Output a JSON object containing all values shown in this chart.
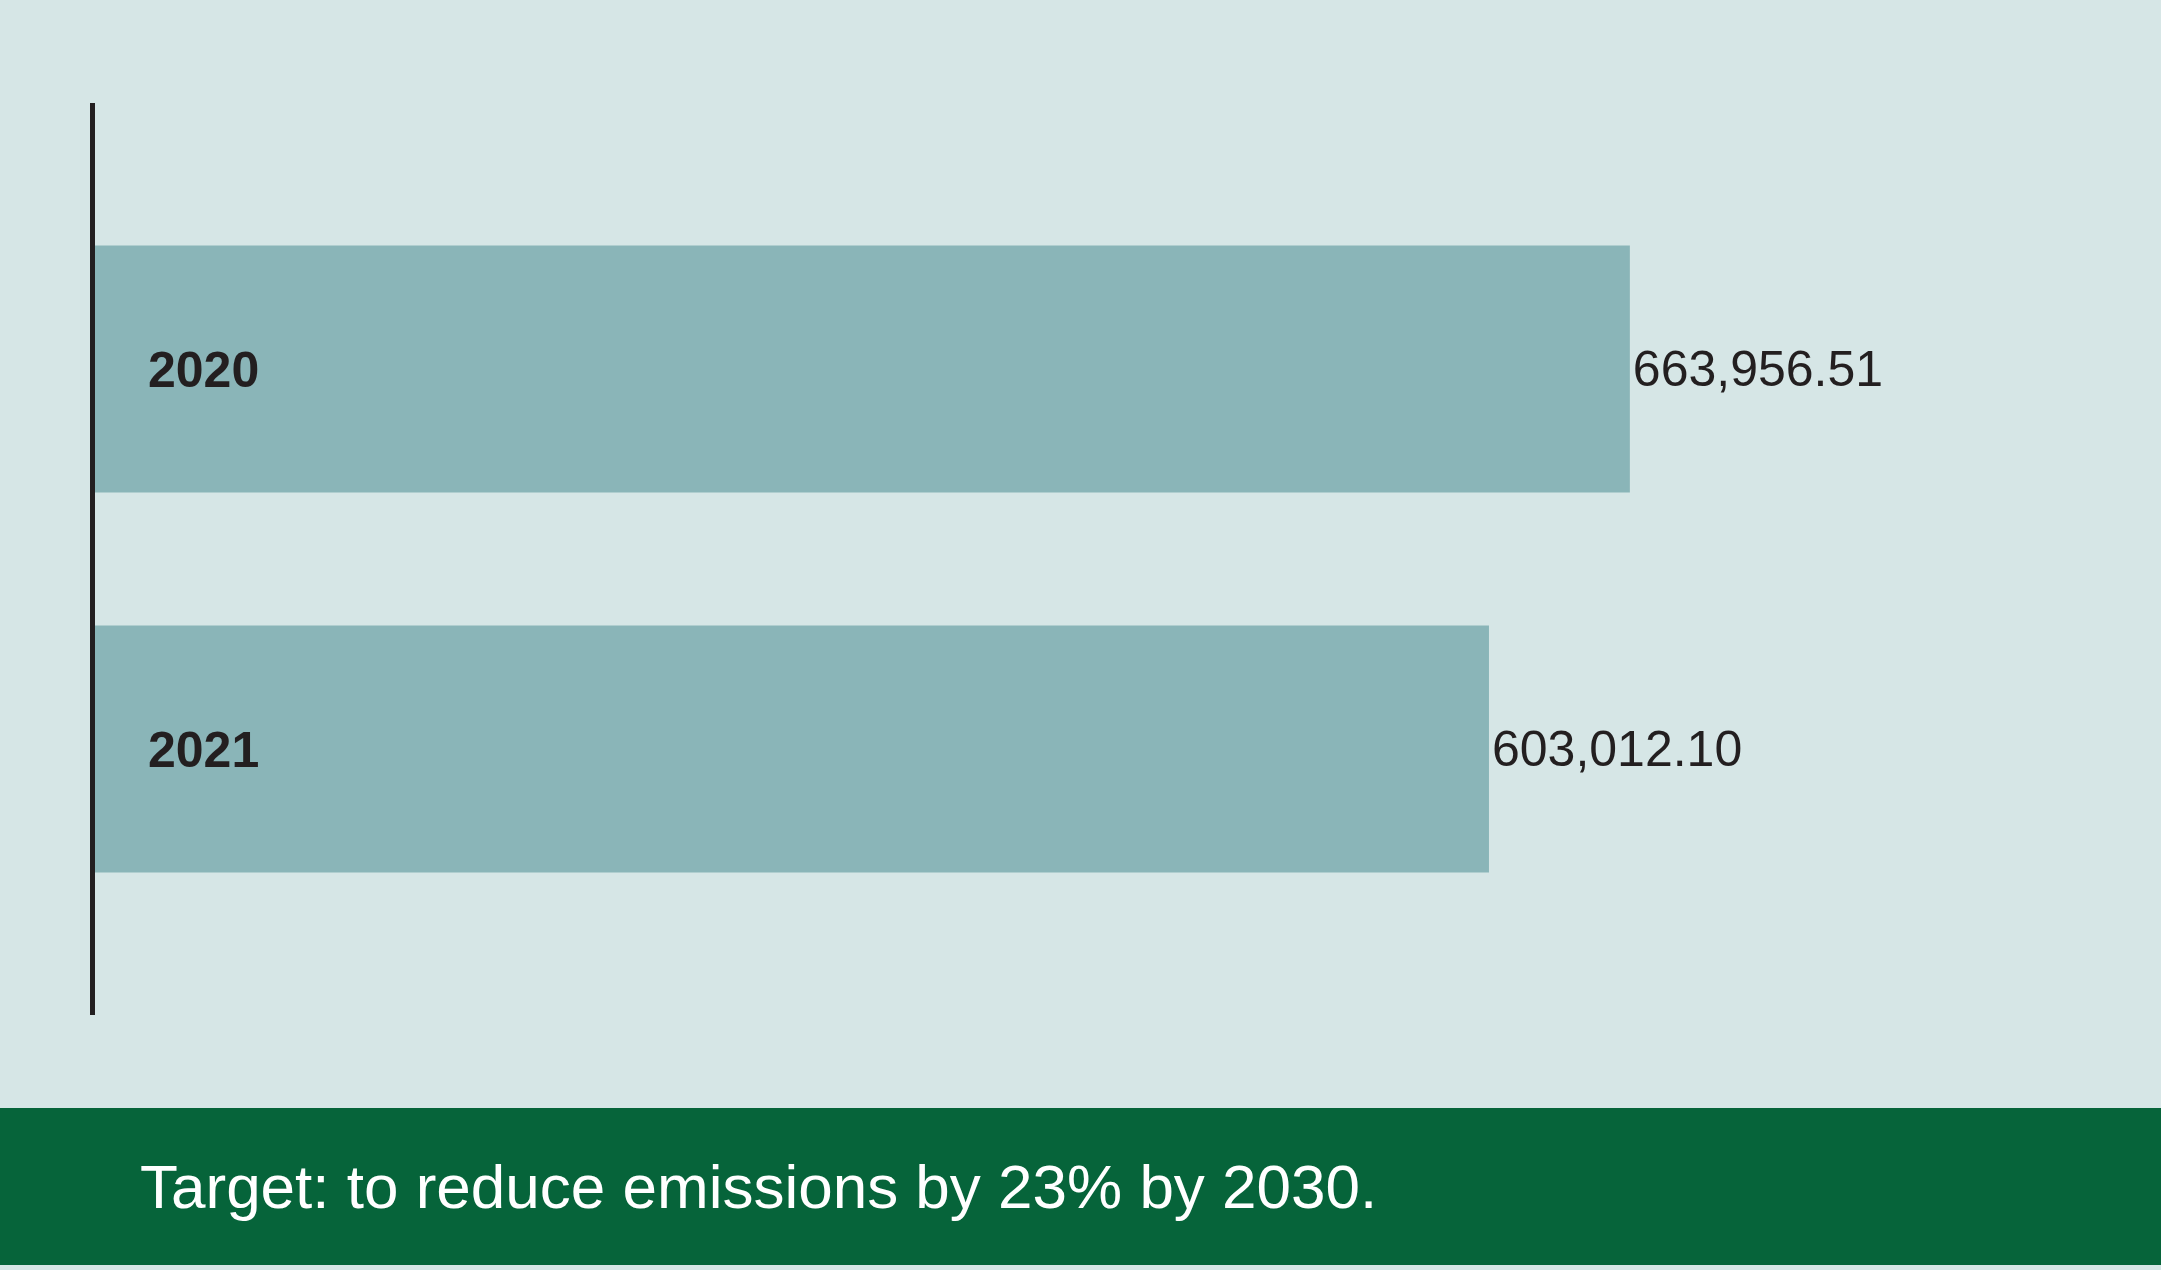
{
  "chart_data": {
    "type": "bar",
    "orientation": "horizontal",
    "categories": [
      "2020",
      "2021"
    ],
    "values": [
      663956.51,
      603012.1
    ],
    "value_labels": [
      "663,956.51",
      "603,012.10"
    ],
    "color": "#8ab5b8",
    "legend": false,
    "tick_labels": "y",
    "annotations": [
      "Target: to reduce emissions by 23% by 2030."
    ]
  }
}
